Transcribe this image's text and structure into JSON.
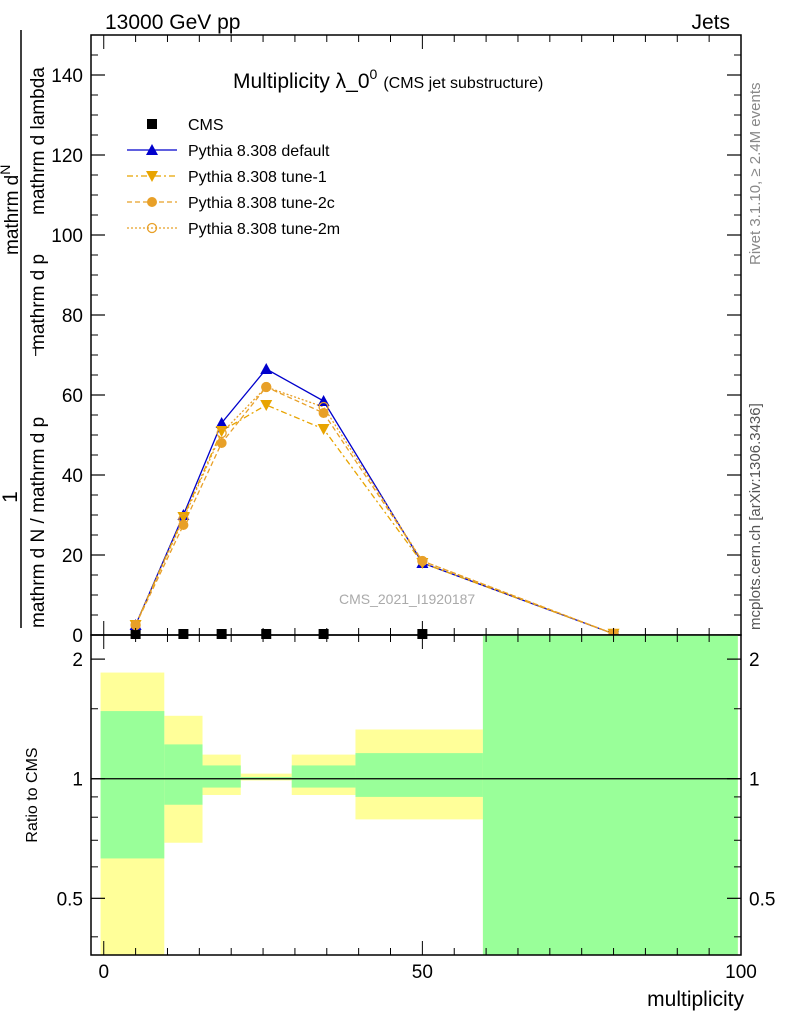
{
  "header": {
    "left": "13000 GeV pp",
    "right": "Jets"
  },
  "side_labels": {
    "rivet": "Rivet 3.1.10, ≥ 2.4M events",
    "mcplots": "mcplots.cern.ch [arXiv:1306.3436]"
  },
  "chart_data": [
    {
      "type": "line",
      "title": "Multiplicity λ_0",
      "title_sup": "0",
      "subtitle": "(CMS jet substructure)",
      "watermark": "CMS_2021_I1920187",
      "ylabel_parts": [
        "mathrm d N / mathrm d p",
        "mathrm d p",
        "mathrm d lambda"
      ],
      "ylabel_prefix": "1",
      "ylabel_num": "mathrm d",
      "ylabel_num2": "N",
      "xlim": [
        -2,
        100
      ],
      "ylim": [
        0,
        150
      ],
      "yticks": [
        0,
        20,
        40,
        60,
        80,
        100,
        120,
        140
      ],
      "grid": false,
      "legend_position": "top-left",
      "series": [
        {
          "name": "CMS",
          "color": "#000000",
          "marker": "square",
          "x": [
            5,
            12.5,
            18.5,
            25.5,
            34.5,
            50,
            80
          ],
          "y": [
            0.1,
            0.1,
            0.1,
            0.1,
            0.1,
            0.1,
            0.05
          ]
        },
        {
          "name": "Pythia 8.308 default",
          "color": "#0000cc",
          "marker": "triangle-up",
          "dash": "",
          "x": [
            5,
            12.5,
            18.5,
            25.5,
            34.5,
            50,
            80
          ],
          "y": [
            2.5,
            30,
            53,
            66.5,
            58.5,
            18,
            0.3
          ]
        },
        {
          "name": "Pythia 8.308 tune-1",
          "color": "#e8a400",
          "marker": "triangle-down",
          "dash": "6,3,2,3",
          "x": [
            5,
            12.5,
            18.5,
            25.5,
            34.5,
            50,
            80
          ],
          "y": [
            2.5,
            29.5,
            51,
            57.5,
            51.5,
            18,
            0.3
          ]
        },
        {
          "name": "Pythia 8.308 tune-2c",
          "color": "#e8a028",
          "marker": "circle",
          "dash": "5,3",
          "x": [
            5,
            12.5,
            18.5,
            25.5,
            34.5,
            50,
            80
          ],
          "y": [
            2.5,
            27.5,
            48,
            62,
            55.5,
            18.5,
            0.3
          ]
        },
        {
          "name": "Pythia 8.308 tune-2m",
          "color": "#e8a028",
          "marker": "circle-open",
          "dash": "2,2",
          "x": [
            5,
            12.5,
            18.5,
            25.5,
            34.5,
            50,
            80
          ],
          "y": [
            2.5,
            29,
            50.5,
            62,
            57,
            18.5,
            0.3
          ]
        }
      ]
    },
    {
      "type": "area",
      "ylabel": "Ratio to CMS",
      "xlabel": "multiplicity",
      "xlim": [
        -2,
        100
      ],
      "ylim": [
        0.36,
        2.3
      ],
      "xticks": [
        0,
        50,
        100
      ],
      "yticks": [
        0.5,
        1,
        2
      ],
      "reference_line": 1,
      "bands": [
        {
          "name": "syst",
          "color": "#ffff99",
          "bins": [
            {
              "x0": -0.5,
              "x1": 9.5,
              "lo": 0.3,
              "hi": 1.85
            },
            {
              "x0": 9.5,
              "x1": 15.5,
              "lo": 0.69,
              "hi": 1.44
            },
            {
              "x0": 15.5,
              "x1": 21.5,
              "lo": 0.91,
              "hi": 1.15
            },
            {
              "x0": 21.5,
              "x1": 29.5,
              "lo": 0.99,
              "hi": 1.03
            },
            {
              "x0": 29.5,
              "x1": 39.5,
              "lo": 0.91,
              "hi": 1.15
            },
            {
              "x0": 39.5,
              "x1": 59.5,
              "lo": 0.79,
              "hi": 1.33
            },
            {
              "x0": 59.5,
              "x1": 99.5,
              "lo": 0.3,
              "hi": 3.0
            }
          ]
        },
        {
          "name": "stat",
          "color": "#99ff99",
          "bins": [
            {
              "x0": -0.5,
              "x1": 9.5,
              "lo": 0.63,
              "hi": 1.48
            },
            {
              "x0": 9.5,
              "x1": 15.5,
              "lo": 0.86,
              "hi": 1.22
            },
            {
              "x0": 15.5,
              "x1": 21.5,
              "lo": 0.95,
              "hi": 1.08
            },
            {
              "x0": 21.5,
              "x1": 29.5,
              "lo": 0.995,
              "hi": 1.01
            },
            {
              "x0": 29.5,
              "x1": 39.5,
              "lo": 0.95,
              "hi": 1.08
            },
            {
              "x0": 39.5,
              "x1": 59.5,
              "lo": 0.9,
              "hi": 1.16
            },
            {
              "x0": 59.5,
              "x1": 99.5,
              "lo": 0.3,
              "hi": 3.0
            }
          ]
        }
      ]
    }
  ]
}
